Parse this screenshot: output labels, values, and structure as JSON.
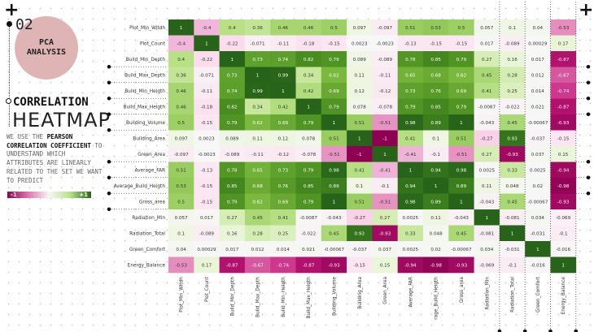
{
  "header": {
    "number": "02",
    "badge": "PCA\nANALYSIS",
    "title_line1": "CORRELATION",
    "title_line2": "HEATMAP"
  },
  "description": {
    "pre": "WE USE THE ",
    "bold": "PEARSON CORRELATION COEFFICIENT",
    "post": " TO UNDERSTAND WHICH ATTRIBUTES ARE LINEARLY RELATED TO THE SET WE WANT TO PREDICT"
  },
  "legend": {
    "min_label": "-1",
    "max_label": "+1"
  },
  "colors": {
    "badge": "#dfb4b4",
    "negative": "#8e0152",
    "neutral": "#f7f7f7",
    "positive": "#276419"
  },
  "chart_data": {
    "type": "heatmap",
    "colormap": "PiYG",
    "range": [
      -1,
      1
    ],
    "row_labels": [
      "Plot_Min_Witdh",
      "Plot_Count",
      "Build_Min_Depth",
      "Build_Max_Depth",
      "Build_Min_Heigth",
      "Build_Max_Heigth",
      "Building_Volume",
      "Building_Area",
      "Green_Area",
      "Average_FAR",
      "Average_Build_Heigth",
      "Gross_area",
      "Radiation_Min",
      "Radiation_Total",
      "Green_Comfort",
      "Energy_Balance"
    ],
    "col_labels": [
      "Plot_Min_Witdh",
      "Plot_Count",
      "Build_Min_Depth",
      "Build_Max_Depth",
      "Build_Min_Heigth",
      "Build_Max_Heigth",
      "Building_Volume",
      "Building_Area",
      "Green_Area",
      "Average_FAR",
      "rage_Build_Heigth",
      "Gross_area",
      "Radiation_Min",
      "Radiation_Total",
      "Green_Comfort",
      "Energy_Balance"
    ],
    "values": [
      [
        1,
        -0.4,
        0.4,
        0.36,
        0.46,
        0.46,
        0.5,
        0.097,
        -0.097,
        0.51,
        0.53,
        0.5,
        0.057,
        0.1,
        0.04,
        -0.53
      ],
      [
        -0.4,
        1,
        -0.22,
        -0.071,
        -0.11,
        -0.18,
        -0.15,
        0.0023,
        -0.0023,
        -0.13,
        -0.15,
        -0.15,
        0.017,
        -0.089,
        0.00029,
        0.17
      ],
      [
        0.4,
        -0.22,
        1,
        0.73,
        0.74,
        0.82,
        0.79,
        0.089,
        -0.089,
        0.78,
        0.85,
        0.79,
        0.27,
        0.16,
        0.017,
        -0.87
      ],
      [
        0.36,
        -0.071,
        0.73,
        1,
        0.99,
        0.34,
        0.62,
        0.11,
        -0.11,
        0.65,
        0.68,
        0.62,
        0.45,
        0.28,
        0.012,
        -0.67
      ],
      [
        0.46,
        -0.11,
        0.74,
        0.99,
        1,
        0.42,
        0.69,
        0.12,
        -0.12,
        0.73,
        0.76,
        0.69,
        0.41,
        0.25,
        0.014,
        -0.74
      ],
      [
        0.46,
        -0.18,
        0.82,
        0.34,
        0.42,
        1,
        0.79,
        0.078,
        -0.078,
        0.79,
        0.85,
        0.79,
        -0.0087,
        -0.022,
        0.021,
        -0.87
      ],
      [
        0.5,
        -0.15,
        0.79,
        0.62,
        0.69,
        0.79,
        1,
        0.51,
        -0.51,
        0.98,
        0.89,
        1,
        -0.043,
        0.45,
        -0.00067,
        -0.93
      ],
      [
        0.097,
        0.0023,
        0.089,
        0.11,
        0.12,
        0.078,
        0.51,
        1,
        -1,
        0.41,
        0.1,
        0.51,
        -0.27,
        0.93,
        -0.037,
        -0.15
      ],
      [
        -0.097,
        -0.0023,
        -0.089,
        -0.11,
        -0.12,
        -0.078,
        -0.51,
        -1,
        1,
        -0.41,
        -0.1,
        -0.51,
        0.27,
        -0.93,
        0.037,
        0.15
      ],
      [
        0.51,
        -0.13,
        0.78,
        0.65,
        0.73,
        0.79,
        0.98,
        0.41,
        -0.41,
        1,
        0.94,
        0.98,
        0.0025,
        0.33,
        0.0025,
        -0.94
      ],
      [
        0.53,
        -0.15,
        0.85,
        0.68,
        0.76,
        0.85,
        0.89,
        0.1,
        -0.1,
        0.94,
        1,
        0.89,
        0.11,
        0.048,
        0.02,
        -0.98
      ],
      [
        0.5,
        -0.15,
        0.79,
        0.62,
        0.69,
        0.79,
        1,
        0.51,
        -0.51,
        0.98,
        0.89,
        1,
        -0.043,
        0.45,
        -0.00067,
        -0.93
      ],
      [
        0.057,
        0.017,
        0.27,
        0.45,
        0.41,
        -0.0087,
        -0.043,
        -0.27,
        0.27,
        0.0025,
        0.11,
        -0.043,
        1,
        -0.081,
        0.034,
        -0.069
      ],
      [
        0.1,
        -0.089,
        0.16,
        0.28,
        0.25,
        -0.022,
        0.45,
        0.93,
        -0.93,
        0.33,
        0.048,
        0.45,
        -0.081,
        1,
        -0.031,
        -0.1
      ],
      [
        0.04,
        0.00029,
        0.017,
        0.012,
        0.014,
        0.021,
        -0.00067,
        -0.037,
        0.037,
        0.0025,
        0.02,
        -0.00067,
        0.034,
        -0.031,
        1,
        -0.016
      ],
      [
        -0.53,
        0.17,
        -0.87,
        -0.67,
        -0.74,
        -0.87,
        -0.93,
        -0.15,
        0.15,
        -0.94,
        -0.98,
        -0.93,
        -0.069,
        -0.1,
        -0.016,
        1
      ]
    ]
  }
}
